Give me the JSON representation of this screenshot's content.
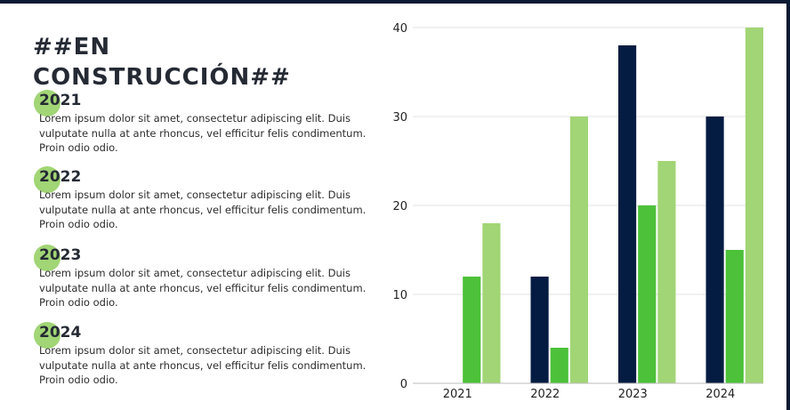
{
  "title": "##EN CONSTRUCCIÓN##",
  "entries": [
    {
      "year": "2021",
      "text": "Lorem ipsum dolor sit amet, consectetur adipiscing elit. Duis vulputate nulla at ante rhoncus, vel efficitur felis condimentum. Proin odio odio."
    },
    {
      "year": "2022",
      "text": "Lorem ipsum dolor sit amet, consectetur adipiscing elit. Duis vulputate nulla at ante rhoncus, vel efficitur felis condimentum. Proin odio odio."
    },
    {
      "year": "2023",
      "text": "Lorem ipsum dolor sit amet, consectetur adipiscing elit. Duis vulputate nulla at ante rhoncus, vel efficitur felis condimentum. Proin odio odio."
    },
    {
      "year": "2024",
      "text": "Lorem ipsum dolor sit amet, consectetur adipiscing elit. Duis vulputate nulla at ante rhoncus, vel efficitur felis condimentum. Proin odio odio."
    }
  ],
  "colors": {
    "dot": "#a1d575",
    "navy": "#051c42",
    "green": "#4cc139",
    "light_green": "#a1d575"
  },
  "chart_data": {
    "type": "bar",
    "categories": [
      "2021",
      "2022",
      "2023",
      "2024"
    ],
    "series": [
      {
        "values": [
          0,
          12,
          38,
          30
        ],
        "color": "#051c42"
      },
      {
        "values": [
          12,
          4,
          20,
          15
        ],
        "color": "#4cc139"
      },
      {
        "values": [
          18,
          30,
          25,
          40
        ],
        "color": "#a1d575"
      }
    ],
    "ylim": [
      0,
      40
    ],
    "yticks": [
      0,
      10,
      20,
      30,
      40
    ],
    "grid": true,
    "legend": "none"
  }
}
